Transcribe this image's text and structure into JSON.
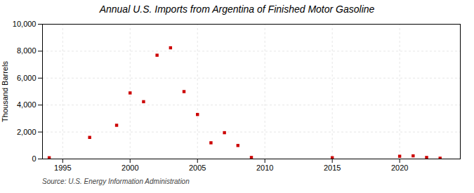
{
  "chart_data": {
    "type": "scatter",
    "title": "Annual U.S. Imports from Argentina of Finished Motor Gasoline",
    "ylabel": "Thousand Barrels",
    "annotations": [
      "Source: U.S. Energy Information Administration"
    ],
    "x": [
      1994,
      1997,
      1999,
      2000,
      2001,
      2002,
      2003,
      2004,
      2005,
      2006,
      2007,
      2008,
      2009,
      2015,
      2020,
      2021,
      2022,
      2023
    ],
    "values": [
      90,
      1600,
      2500,
      4900,
      4250,
      7700,
      8250,
      5000,
      3300,
      1200,
      1950,
      1000,
      110,
      90,
      200,
      230,
      110,
      55
    ],
    "color": "#cc0000",
    "marker": "square",
    "xlim": [
      1993.5,
      2024.5
    ],
    "xticks": [
      1995,
      2000,
      2005,
      2010,
      2015,
      2020
    ],
    "ylim": [
      0,
      10000
    ],
    "yticks": [
      0,
      {
        "value": 2000,
        "label": "2,000"
      },
      {
        "value": 4000,
        "label": "4,000"
      },
      {
        "value": 6000,
        "label": "6,000"
      },
      {
        "value": 8000,
        "label": "8,000"
      },
      {
        "value": 10000,
        "label": "10,000"
      }
    ],
    "grid": true
  }
}
